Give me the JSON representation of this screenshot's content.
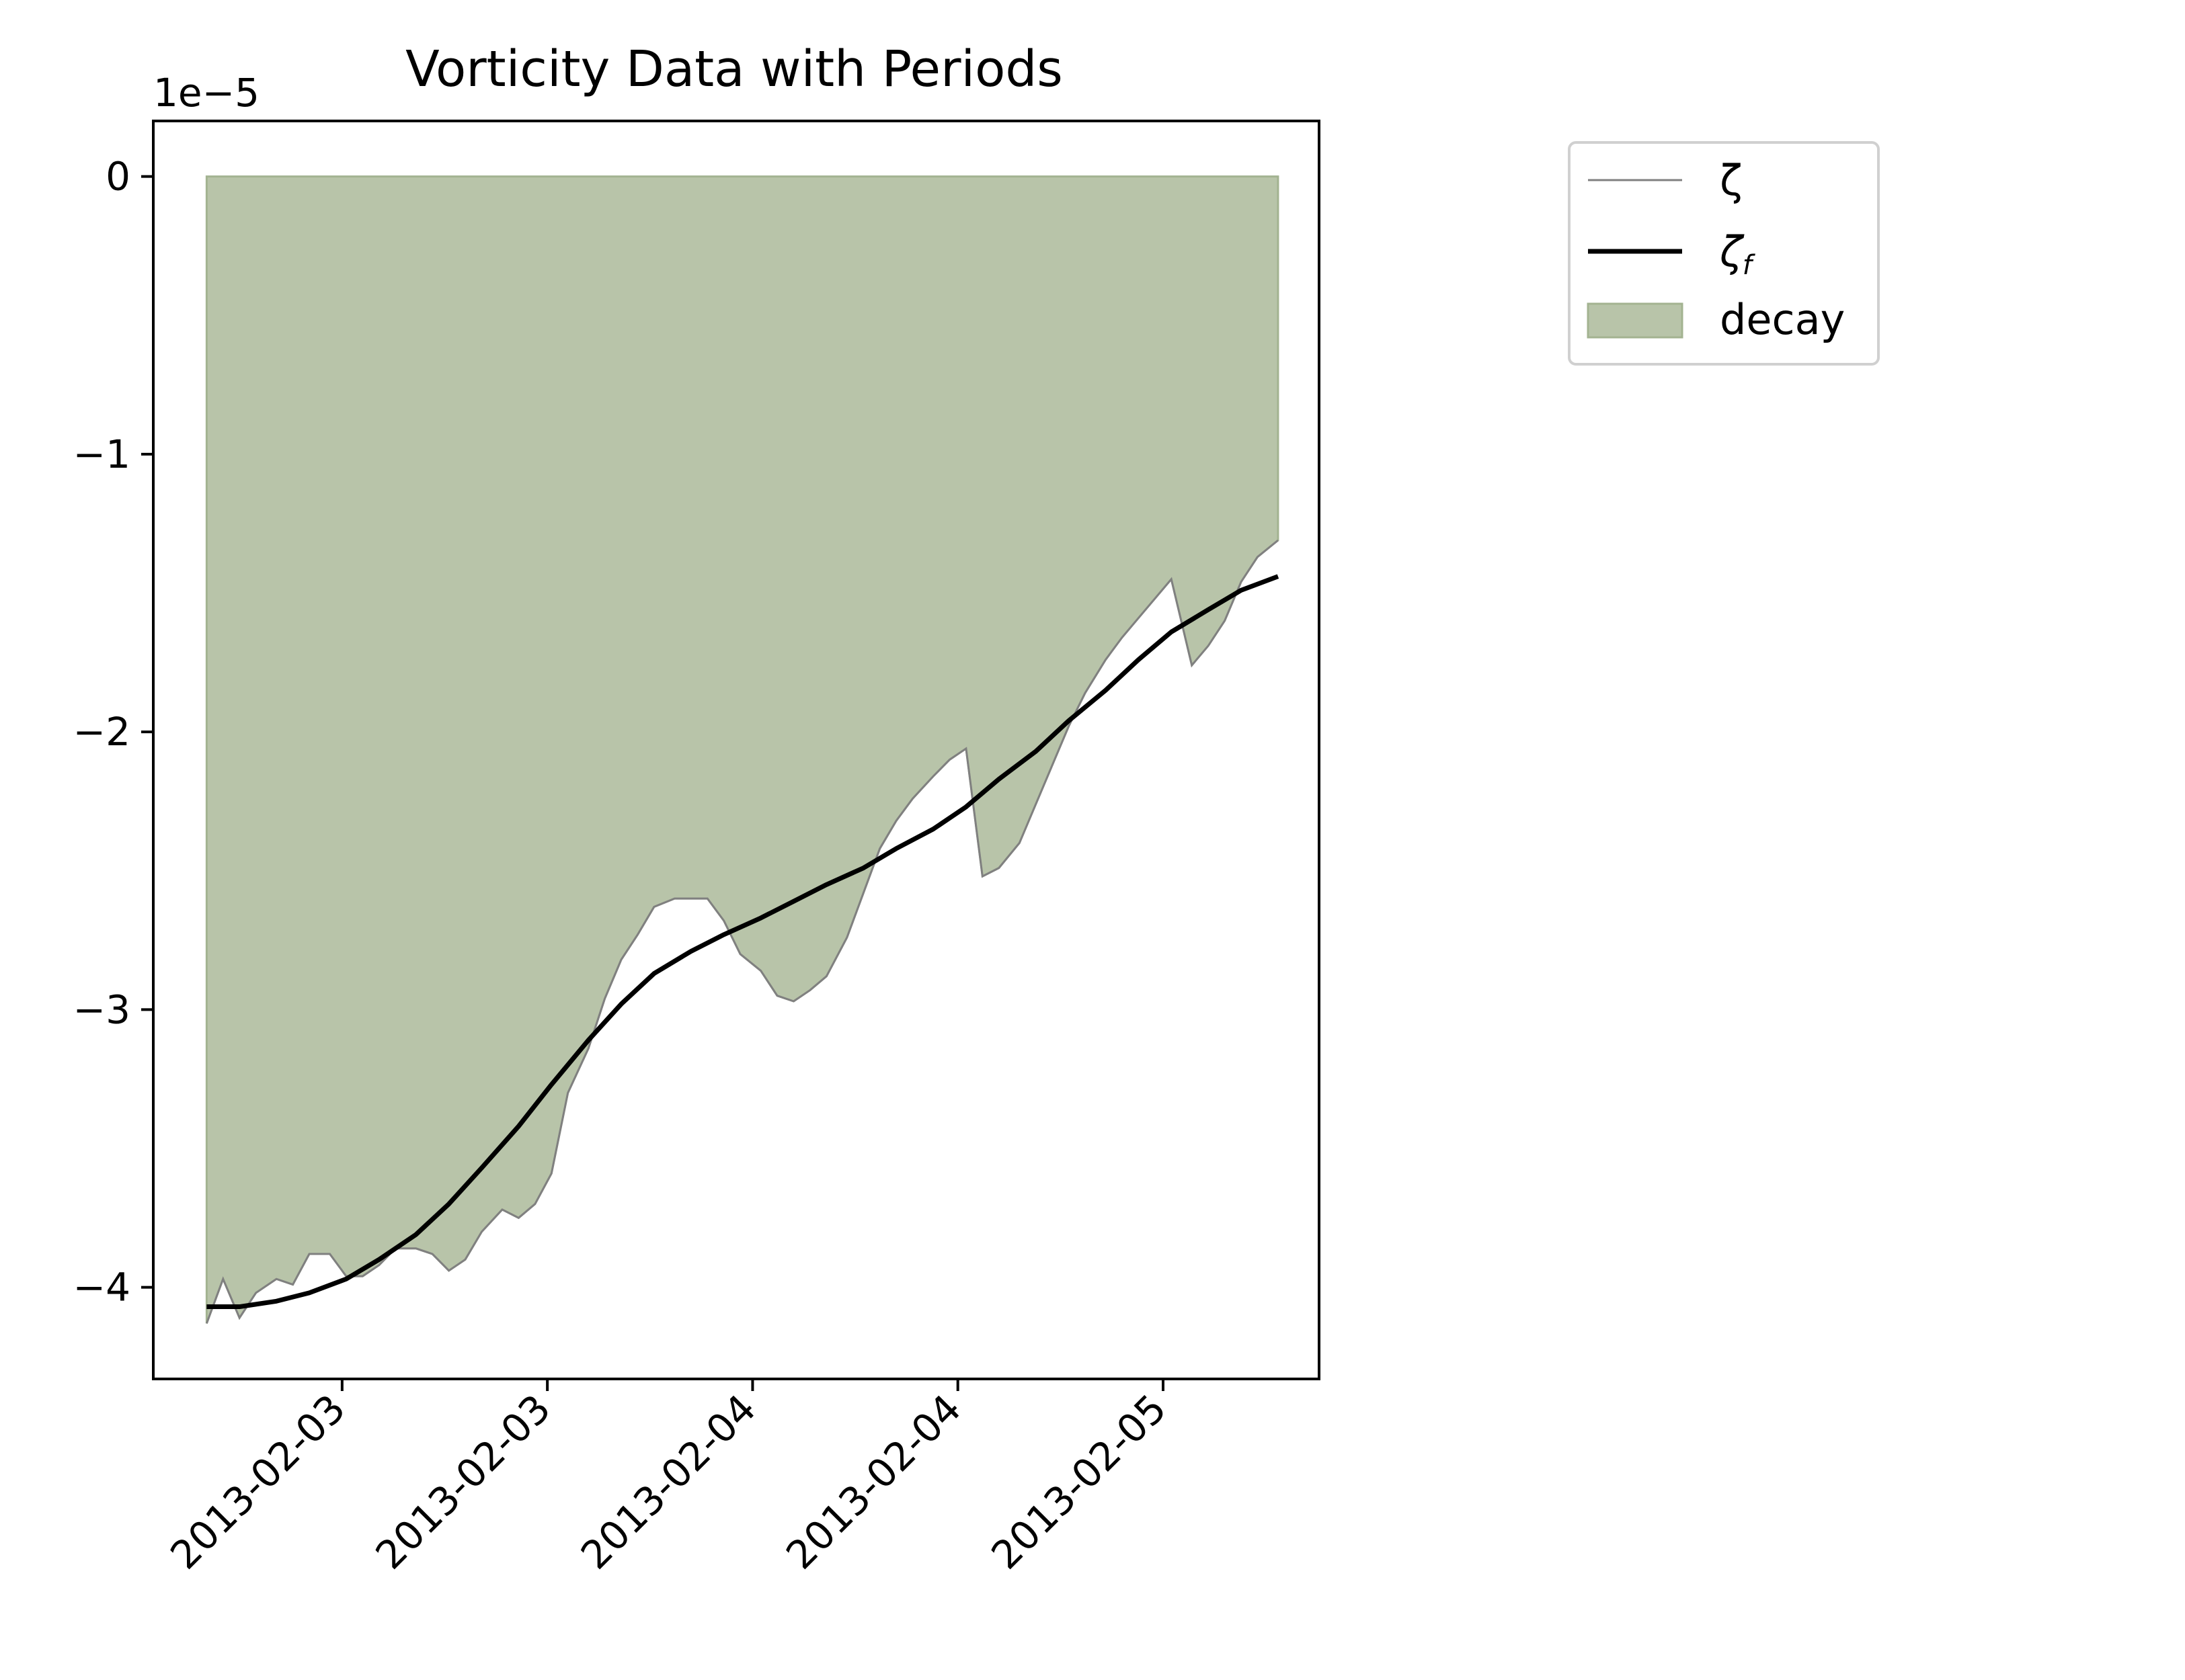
{
  "chart_data": {
    "type": "line",
    "title": "Vorticity Data with Periods",
    "xlabel": "",
    "ylabel": "",
    "y_scale_label": "1e−5",
    "yticks": [
      0,
      -1,
      -2,
      -3,
      -4
    ],
    "ytick_labels": [
      "0",
      "−1",
      "−2",
      "−3",
      "−4"
    ],
    "ylim": [
      -4.33,
      0.2
    ],
    "xlim": [
      -0.26,
      2.58
    ],
    "xticks": [
      0.2,
      0.7,
      1.2,
      1.7,
      2.2
    ],
    "xtick_labels": [
      "2013-02-03",
      "2013-02-03",
      "2013-02-04",
      "2013-02-04",
      "2013-02-05"
    ],
    "grid": false,
    "legend_position": "outside upper right",
    "legend": [
      {
        "label": "ζ",
        "kind": "thin-line"
      },
      {
        "label": "ζ",
        "sub": "f",
        "kind": "thick-line"
      },
      {
        "label": "decay",
        "kind": "patch"
      }
    ],
    "series": [
      {
        "name": "ζ",
        "color": "#808080",
        "x": [
          -0.13,
          -0.09,
          -0.05,
          -0.01,
          0.04,
          0.08,
          0.12,
          0.17,
          0.21,
          0.25,
          0.29,
          0.33,
          0.38,
          0.42,
          0.46,
          0.5,
          0.54,
          0.59,
          0.63,
          0.67,
          0.71,
          0.75,
          0.8,
          0.84,
          0.88,
          0.92,
          0.96,
          1.01,
          1.05,
          1.09,
          1.13,
          1.17,
          1.22,
          1.26,
          1.3,
          1.34,
          1.38,
          1.43,
          1.47,
          1.51,
          1.55,
          1.59,
          1.64,
          1.68,
          1.72,
          1.76,
          1.8,
          1.85,
          1.89,
          1.93,
          1.97,
          2.01,
          2.06,
          2.1,
          2.14,
          2.18,
          2.22,
          2.27,
          2.31,
          2.35,
          2.39,
          2.43,
          2.48
        ],
        "y": [
          -4.13,
          -3.97,
          -4.11,
          -4.02,
          -3.97,
          -3.99,
          -3.88,
          -3.88,
          -3.96,
          -3.96,
          -3.92,
          -3.86,
          -3.86,
          -3.88,
          -3.94,
          -3.9,
          -3.8,
          -3.72,
          -3.75,
          -3.7,
          -3.59,
          -3.3,
          -3.14,
          -2.96,
          -2.82,
          -2.73,
          -2.63,
          -2.6,
          -2.6,
          -2.6,
          -2.68,
          -2.8,
          -2.86,
          -2.95,
          -2.97,
          -2.93,
          -2.88,
          -2.74,
          -2.58,
          -2.42,
          -2.32,
          -2.24,
          -2.16,
          -2.1,
          -2.06,
          -2.52,
          -2.49,
          -2.4,
          -2.26,
          -2.12,
          -1.98,
          -1.86,
          -1.74,
          -1.66,
          -1.59,
          -1.52,
          -1.45,
          -1.76,
          -1.69,
          -1.6,
          -1.46,
          -1.37,
          -1.31
        ]
      },
      {
        "name": "ζ",
        "name_sub": "f",
        "color": "#000000",
        "x": [
          -0.13,
          -0.05,
          0.04,
          0.12,
          0.21,
          0.29,
          0.38,
          0.46,
          0.54,
          0.63,
          0.71,
          0.8,
          0.88,
          0.96,
          1.05,
          1.13,
          1.22,
          1.3,
          1.38,
          1.47,
          1.55,
          1.64,
          1.72,
          1.8,
          1.89,
          1.97,
          2.06,
          2.14,
          2.22,
          2.31,
          2.39,
          2.48
        ],
        "y": [
          -4.07,
          -4.07,
          -4.05,
          -4.02,
          -3.97,
          -3.9,
          -3.81,
          -3.7,
          -3.57,
          -3.42,
          -3.27,
          -3.11,
          -2.98,
          -2.87,
          -2.79,
          -2.73,
          -2.67,
          -2.61,
          -2.55,
          -2.49,
          -2.42,
          -2.35,
          -2.27,
          -2.17,
          -2.07,
          -1.96,
          -1.85,
          -1.74,
          -1.64,
          -1.56,
          -1.49,
          -1.44
        ]
      },
      {
        "name": "decay",
        "type": "area",
        "color": "#b8c4a9",
        "edge_color": "#a3b391",
        "baseline": 0,
        "follows": "ζ",
        "x_range": [
          -0.13,
          2.48
        ]
      }
    ]
  }
}
